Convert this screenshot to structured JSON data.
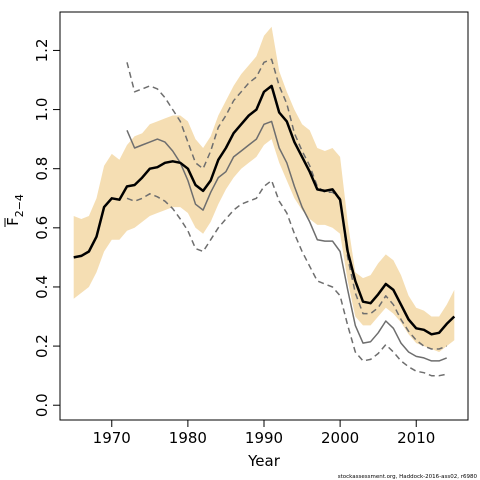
{
  "chart_data": {
    "type": "line",
    "xlabel": "Year",
    "ylabel_main": "F",
    "ylabel_sub": "2−4",
    "credit": "stockassessment.org, Haddock-2016-ass02, r6980",
    "xlim": [
      1963.2,
      2016.8
    ],
    "ylim": [
      -0.05,
      1.33
    ],
    "xticks": [
      1970,
      1980,
      1990,
      2000,
      2010
    ],
    "yticks": [
      0.0,
      0.2,
      0.4,
      0.6,
      0.8,
      1.0,
      1.2
    ],
    "grid": false,
    "colors": {
      "band": "#f5deb3",
      "estimate": "#000000",
      "retro": "#6e6e6e"
    },
    "band": {
      "x": [
        1965,
        1966,
        1967,
        1968,
        1969,
        1970,
        1971,
        1972,
        1973,
        1974,
        1975,
        1976,
        1977,
        1978,
        1979,
        1980,
        1981,
        1982,
        1983,
        1984,
        1985,
        1986,
        1987,
        1988,
        1989,
        1990,
        1991,
        1992,
        1993,
        1994,
        1995,
        1996,
        1997,
        1998,
        1999,
        2000,
        2001,
        2002,
        2003,
        2004,
        2005,
        2006,
        2007,
        2008,
        2009,
        2010,
        2011,
        2012,
        2013,
        2014,
        2015
      ],
      "upper": [
        0.64,
        0.63,
        0.64,
        0.7,
        0.81,
        0.85,
        0.83,
        0.88,
        0.91,
        0.92,
        0.95,
        0.96,
        0.97,
        0.98,
        0.98,
        0.96,
        0.9,
        0.87,
        0.91,
        0.98,
        1.03,
        1.08,
        1.12,
        1.15,
        1.18,
        1.25,
        1.28,
        1.13,
        1.06,
        1.0,
        0.95,
        0.93,
        0.87,
        0.86,
        0.87,
        0.84,
        0.62,
        0.45,
        0.43,
        0.44,
        0.48,
        0.51,
        0.49,
        0.44,
        0.37,
        0.33,
        0.32,
        0.3,
        0.3,
        0.34,
        0.39
      ],
      "lower": [
        0.36,
        0.38,
        0.4,
        0.45,
        0.52,
        0.56,
        0.56,
        0.59,
        0.6,
        0.62,
        0.64,
        0.65,
        0.66,
        0.67,
        0.67,
        0.65,
        0.6,
        0.58,
        0.62,
        0.68,
        0.73,
        0.77,
        0.8,
        0.82,
        0.84,
        0.88,
        0.9,
        0.82,
        0.76,
        0.7,
        0.66,
        0.63,
        0.61,
        0.61,
        0.6,
        0.58,
        0.42,
        0.3,
        0.27,
        0.27,
        0.3,
        0.33,
        0.31,
        0.28,
        0.24,
        0.21,
        0.2,
        0.19,
        0.18,
        0.2,
        0.22
      ]
    },
    "series": [
      {
        "role": "estimate",
        "x": [
          1965,
          1966,
          1967,
          1968,
          1969,
          1970,
          1971,
          1972,
          1973,
          1974,
          1975,
          1976,
          1977,
          1978,
          1979,
          1980,
          1981,
          1982,
          1983,
          1984,
          1985,
          1986,
          1987,
          1988,
          1989,
          1990,
          1991,
          1992,
          1993,
          1994,
          1995,
          1996,
          1997,
          1998,
          1999,
          2000,
          2001,
          2002,
          2003,
          2004,
          2005,
          2006,
          2007,
          2008,
          2009,
          2010,
          2011,
          2012,
          2013,
          2014,
          2015
        ],
        "y": [
          0.5,
          0.505,
          0.52,
          0.57,
          0.67,
          0.7,
          0.695,
          0.74,
          0.745,
          0.77,
          0.8,
          0.805,
          0.82,
          0.825,
          0.82,
          0.8,
          0.745,
          0.725,
          0.76,
          0.83,
          0.87,
          0.92,
          0.95,
          0.98,
          1.0,
          1.06,
          1.08,
          0.99,
          0.96,
          0.89,
          0.84,
          0.79,
          0.73,
          0.725,
          0.73,
          0.695,
          0.52,
          0.42,
          0.35,
          0.345,
          0.375,
          0.41,
          0.39,
          0.34,
          0.29,
          0.26,
          0.255,
          0.24,
          0.245,
          0.275,
          0.3
        ]
      },
      {
        "role": "retro-upper",
        "x": [
          1972,
          1973,
          1974,
          1975,
          1976,
          1977,
          1978,
          1979,
          1980,
          1981,
          1982,
          1983,
          1984,
          1985,
          1986,
          1987,
          1988,
          1989,
          1990,
          1991,
          1992,
          1993,
          1994,
          1995,
          1996,
          1997,
          1998,
          1999,
          2000,
          2001,
          2002,
          2003,
          2004,
          2005,
          2006,
          2007,
          2008,
          2009,
          2010,
          2011,
          2012,
          2013,
          2014
        ],
        "y": [
          1.16,
          1.06,
          1.07,
          1.08,
          1.07,
          1.04,
          1.0,
          0.96,
          0.89,
          0.82,
          0.8,
          0.86,
          0.94,
          0.98,
          1.03,
          1.06,
          1.09,
          1.11,
          1.16,
          1.17,
          1.08,
          1.02,
          0.92,
          0.86,
          0.81,
          0.74,
          0.72,
          0.72,
          0.7,
          0.5,
          0.38,
          0.31,
          0.31,
          0.33,
          0.37,
          0.34,
          0.29,
          0.25,
          0.22,
          0.2,
          0.19,
          0.19,
          0.2
        ]
      },
      {
        "role": "retro-mid",
        "x": [
          1972,
          1973,
          1974,
          1975,
          1976,
          1977,
          1978,
          1979,
          1980,
          1981,
          1982,
          1983,
          1984,
          1985,
          1986,
          1987,
          1988,
          1989,
          1990,
          1991,
          1992,
          1993,
          1994,
          1995,
          1996,
          1997,
          1998,
          1999,
          2000,
          2001,
          2002,
          2003,
          2004,
          2005,
          2006,
          2007,
          2008,
          2009,
          2010,
          2011,
          2012,
          2013,
          2014
        ],
        "y": [
          0.93,
          0.87,
          0.88,
          0.89,
          0.9,
          0.89,
          0.86,
          0.82,
          0.76,
          0.68,
          0.66,
          0.72,
          0.77,
          0.79,
          0.84,
          0.86,
          0.88,
          0.9,
          0.95,
          0.96,
          0.87,
          0.82,
          0.74,
          0.67,
          0.62,
          0.56,
          0.555,
          0.555,
          0.52,
          0.39,
          0.27,
          0.21,
          0.215,
          0.245,
          0.285,
          0.26,
          0.21,
          0.18,
          0.165,
          0.16,
          0.15,
          0.15,
          0.16
        ]
      },
      {
        "role": "retro-lower",
        "x": [
          1972,
          1973,
          1974,
          1975,
          1976,
          1977,
          1978,
          1979,
          1980,
          1981,
          1982,
          1983,
          1984,
          1985,
          1986,
          1987,
          1988,
          1989,
          1990,
          1991,
          1992,
          1993,
          1994,
          1995,
          1996,
          1997,
          1998,
          1999,
          2000,
          2001,
          2002,
          2003,
          2004,
          2005,
          2006,
          2007,
          2008,
          2009,
          2010,
          2011,
          2012,
          2013,
          2014
        ],
        "y": [
          0.7,
          0.69,
          0.7,
          0.715,
          0.705,
          0.69,
          0.665,
          0.63,
          0.59,
          0.53,
          0.52,
          0.56,
          0.6,
          0.63,
          0.66,
          0.68,
          0.69,
          0.7,
          0.74,
          0.76,
          0.69,
          0.65,
          0.58,
          0.52,
          0.47,
          0.42,
          0.41,
          0.4,
          0.37,
          0.27,
          0.18,
          0.15,
          0.155,
          0.175,
          0.205,
          0.18,
          0.15,
          0.13,
          0.115,
          0.11,
          0.1,
          0.1,
          0.105
        ]
      }
    ]
  }
}
